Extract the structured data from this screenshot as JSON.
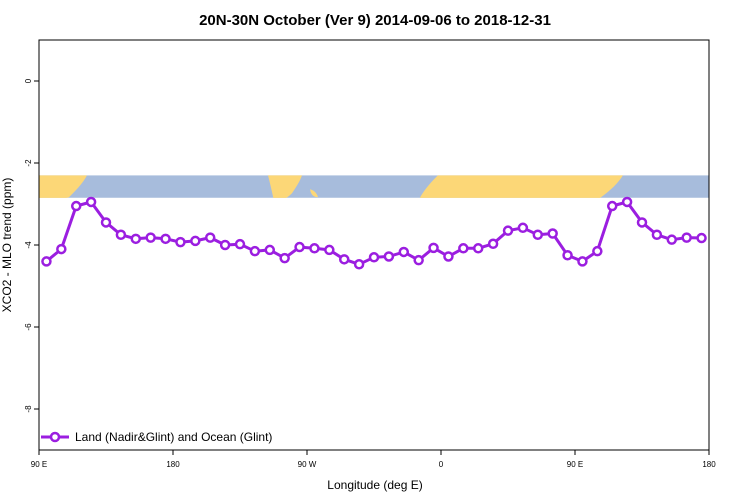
{
  "chart_data": {
    "type": "line",
    "title": "20N-30N October (Ver 9)   2014-09-06 to 2018-12-31",
    "xlabel": "Longitude (deg E)",
    "ylabel": "XCO2 - MLO trend (ppm)",
    "xlim": [
      90,
      540
    ],
    "ylim": [
      -9.0,
      1.0
    ],
    "x_ticks": [
      {
        "value": 90,
        "label": "90 E"
      },
      {
        "value": 180,
        "label": "180"
      },
      {
        "value": 270,
        "label": "90 W"
      },
      {
        "value": 360,
        "label": "0"
      },
      {
        "value": 450,
        "label": "90 E"
      },
      {
        "value": 540,
        "label": "180"
      }
    ],
    "y_ticks": [
      {
        "value": 0,
        "label": "0"
      },
      {
        "value": -2,
        "label": "-2"
      },
      {
        "value": -4,
        "label": "-4"
      },
      {
        "value": -6,
        "label": "-6"
      },
      {
        "value": -8,
        "label": "-8"
      }
    ],
    "grid": false,
    "legend_position": "bottom-left",
    "map_strip": {
      "ymin": -2.85,
      "ymax": -2.3,
      "ocean_color": "#a7bcdc",
      "land_color": "#fcd777"
    },
    "series": [
      {
        "name": "Land (Nadir&Glint) and Ocean (Glint)",
        "color": "#9b1ee0",
        "x": [
          95,
          105,
          115,
          125,
          135,
          145,
          155,
          165,
          175,
          185,
          195,
          205,
          215,
          225,
          235,
          245,
          255,
          265,
          275,
          285,
          295,
          305,
          315,
          325,
          335,
          345,
          355,
          365,
          375,
          385,
          395,
          405,
          415,
          425,
          435,
          445,
          455,
          465,
          475,
          485,
          495,
          505,
          515,
          525,
          535
        ],
        "y": [
          -4.4,
          -4.1,
          -3.05,
          -2.95,
          -3.45,
          -3.75,
          -3.85,
          -3.82,
          -3.85,
          -3.93,
          -3.9,
          -3.82,
          -4.0,
          -3.98,
          -4.15,
          -4.12,
          -4.32,
          -4.05,
          -4.08,
          -4.12,
          -4.35,
          -4.47,
          -4.3,
          -4.28,
          -4.17,
          -4.37,
          -4.07,
          -4.28,
          -4.08,
          -4.08,
          -3.97,
          -3.65,
          -3.58,
          -3.75,
          -3.72,
          -4.25,
          -4.4,
          -4.15,
          -3.05,
          -2.95,
          -3.45,
          -3.75,
          -3.87,
          -3.82,
          -3.83
        ]
      }
    ]
  }
}
